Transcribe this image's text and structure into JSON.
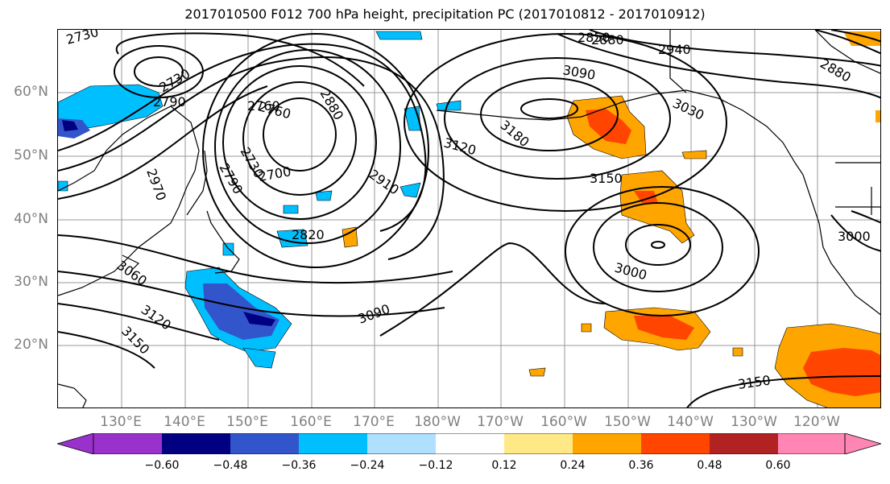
{
  "title": "2017010500 F012 700 hPa height, precipitation PC (2017010812 - 2017010912)",
  "lat_labels": [
    "60°N",
    "50°N",
    "40°N",
    "30°N",
    "20°N"
  ],
  "lon_labels": [
    "130°E",
    "140°E",
    "150°E",
    "160°E",
    "170°E",
    "180°W",
    "170°W",
    "160°W",
    "150°W",
    "140°W",
    "130°W",
    "120°W"
  ],
  "colorbar": {
    "ticks": [
      "−0.60",
      "−0.48",
      "−0.36",
      "−0.24",
      "−0.12",
      "0.12",
      "0.24",
      "0.36",
      "0.48",
      "0.60"
    ],
    "colors": [
      "#9932cc",
      "#000080",
      "#3355cc",
      "#00bfff",
      "#b0e0ff",
      "#ffffff",
      "#ffe987",
      "#ffa500",
      "#ff4500",
      "#b22222",
      "#ff86b4"
    ]
  },
  "contour_labels": [
    "2730",
    "2730",
    "2790",
    "2760",
    "2880",
    "2850",
    "2880",
    "2940",
    "3090",
    "3030",
    "3180",
    "3120",
    "2730",
    "2700",
    "2790",
    "2970",
    "2910",
    "2820",
    "3150",
    "3060",
    "3000",
    "3120",
    "3150",
    "3090",
    "3000",
    "3150",
    "2880",
    "2760"
  ],
  "colors": {
    "precip_orange": "#ffa500",
    "precip_red": "#ff4500",
    "precip_blue": "#00bfff",
    "precip_darkblue": "#000080"
  }
}
